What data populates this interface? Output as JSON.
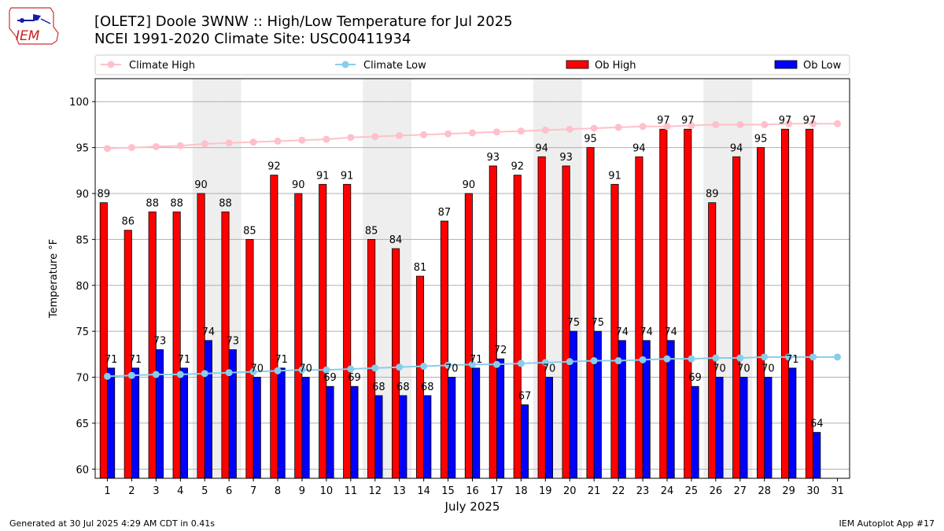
{
  "header": {
    "title_line1": "[OLET2] Doole 3WNW :: High/Low Temperature for Jul 2025",
    "title_line2": "NCEI 1991-2020 Climate Site: USC00411934",
    "logo_text": "IEM"
  },
  "footer": {
    "generated": "Generated at 30 Jul 2025 4:29 AM CDT in 0.41s",
    "app": "IEM Autoplot App #17"
  },
  "colors": {
    "ob_high": "#ff0000",
    "ob_low": "#0000ff",
    "climate_high": "#ffc0cb",
    "climate_low": "#87ceeb",
    "weekend_shade": "#eeeeee",
    "grid": "#b0b0b0"
  },
  "chart_data": {
    "type": "bar",
    "xlabel": "July 2025",
    "ylabel": "Temperature °F",
    "ylim": [
      59,
      102.5
    ],
    "yticks": [
      60,
      65,
      70,
      75,
      80,
      85,
      90,
      95,
      100
    ],
    "categories": [
      "1",
      "2",
      "3",
      "4",
      "5",
      "6",
      "7",
      "8",
      "9",
      "10",
      "11",
      "12",
      "13",
      "14",
      "15",
      "16",
      "17",
      "18",
      "19",
      "20",
      "21",
      "22",
      "23",
      "24",
      "25",
      "26",
      "27",
      "28",
      "29",
      "30",
      "31"
    ],
    "grid": "horizontal",
    "legend_position": "top",
    "shaded_days": [
      5,
      6,
      12,
      13,
      19,
      20,
      26,
      27
    ],
    "legend": [
      {
        "label": "Climate High",
        "kind": "line",
        "color": "#ffc0cb"
      },
      {
        "label": "Climate Low",
        "kind": "line",
        "color": "#87ceeb"
      },
      {
        "label": "Ob High",
        "kind": "bar",
        "color": "#ff0000"
      },
      {
        "label": "Ob Low",
        "kind": "bar",
        "color": "#0000ff"
      }
    ],
    "series": [
      {
        "name": "Ob High",
        "kind": "bar",
        "values": [
          89,
          86,
          88,
          88,
          90,
          88,
          85,
          92,
          90,
          91,
          91,
          85,
          84,
          81,
          87,
          90,
          93,
          92,
          94,
          93,
          95,
          91,
          94,
          97,
          97,
          89,
          94,
          95,
          97,
          97,
          null
        ]
      },
      {
        "name": "Ob Low",
        "kind": "bar",
        "values": [
          71,
          71,
          73,
          71,
          74,
          73,
          70,
          71,
          70,
          69,
          69,
          68,
          68,
          68,
          70,
          71,
          72,
          67,
          70,
          75,
          75,
          74,
          74,
          74,
          69,
          70,
          70,
          70,
          71,
          64,
          null
        ]
      },
      {
        "name": "Climate High",
        "kind": "line",
        "values": [
          94.9,
          95.0,
          95.1,
          95.2,
          95.4,
          95.5,
          95.6,
          95.7,
          95.8,
          95.9,
          96.1,
          96.2,
          96.3,
          96.4,
          96.5,
          96.6,
          96.7,
          96.8,
          96.9,
          97.0,
          97.1,
          97.2,
          97.3,
          97.3,
          97.4,
          97.5,
          97.5,
          97.5,
          97.6,
          97.6,
          97.6
        ]
      },
      {
        "name": "Climate Low",
        "kind": "line",
        "values": [
          70.1,
          70.2,
          70.3,
          70.3,
          70.4,
          70.5,
          70.6,
          70.7,
          70.8,
          70.8,
          70.9,
          71.0,
          71.1,
          71.2,
          71.3,
          71.4,
          71.4,
          71.5,
          71.6,
          71.7,
          71.8,
          71.8,
          71.9,
          72.0,
          72.0,
          72.1,
          72.1,
          72.2,
          72.2,
          72.2,
          72.2
        ]
      }
    ]
  }
}
